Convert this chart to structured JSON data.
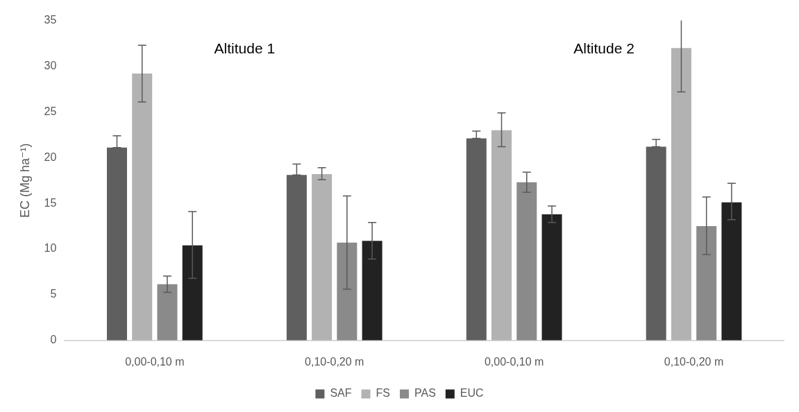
{
  "chart_data": {
    "type": "bar",
    "ylabel": "EC (Mg ha⁻¹)",
    "annotations": [
      "Altitude 1",
      "Altitude 2"
    ],
    "categories": [
      "0,00-0,10 m",
      "0,10-0,20 m",
      "0,00-0,10 m",
      "0,10-0,20 m"
    ],
    "series": [
      {
        "name": "SAF",
        "color": "#5f5f5f",
        "values": [
          21.1,
          18.1,
          22.1,
          21.2
        ],
        "errors": [
          [
            21.1,
            22.4
          ],
          [
            18.1,
            19.3
          ],
          [
            22.1,
            22.9
          ],
          [
            21.2,
            22.0
          ]
        ]
      },
      {
        "name": "FS",
        "color": "#b2b2b2",
        "values": [
          29.2,
          18.2,
          23.0,
          32.0
        ],
        "errors": [
          [
            26.1,
            32.3
          ],
          [
            17.6,
            18.9
          ],
          [
            21.2,
            24.9
          ],
          [
            27.2,
            35
          ]
        ]
      },
      {
        "name": "PAS",
        "color": "#8a8a8a",
        "values": [
          6.15,
          10.7,
          17.3,
          12.5
        ],
        "errors": [
          [
            5.25,
            7.05
          ],
          [
            5.6,
            15.8
          ],
          [
            16.2,
            18.4
          ],
          [
            9.4,
            15.7
          ]
        ]
      },
      {
        "name": "EUC",
        "color": "#222222",
        "values": [
          10.4,
          10.9,
          13.8,
          15.1
        ],
        "errors": [
          [
            6.8,
            14.1
          ],
          [
            8.9,
            12.9
          ],
          [
            12.9,
            14.7
          ],
          [
            13.2,
            17.2
          ]
        ]
      }
    ],
    "ylim": [
      0,
      35
    ],
    "yticks": [
      0,
      5,
      10,
      15,
      20,
      25,
      30,
      35
    ],
    "grid": false,
    "legend": "bottom"
  }
}
